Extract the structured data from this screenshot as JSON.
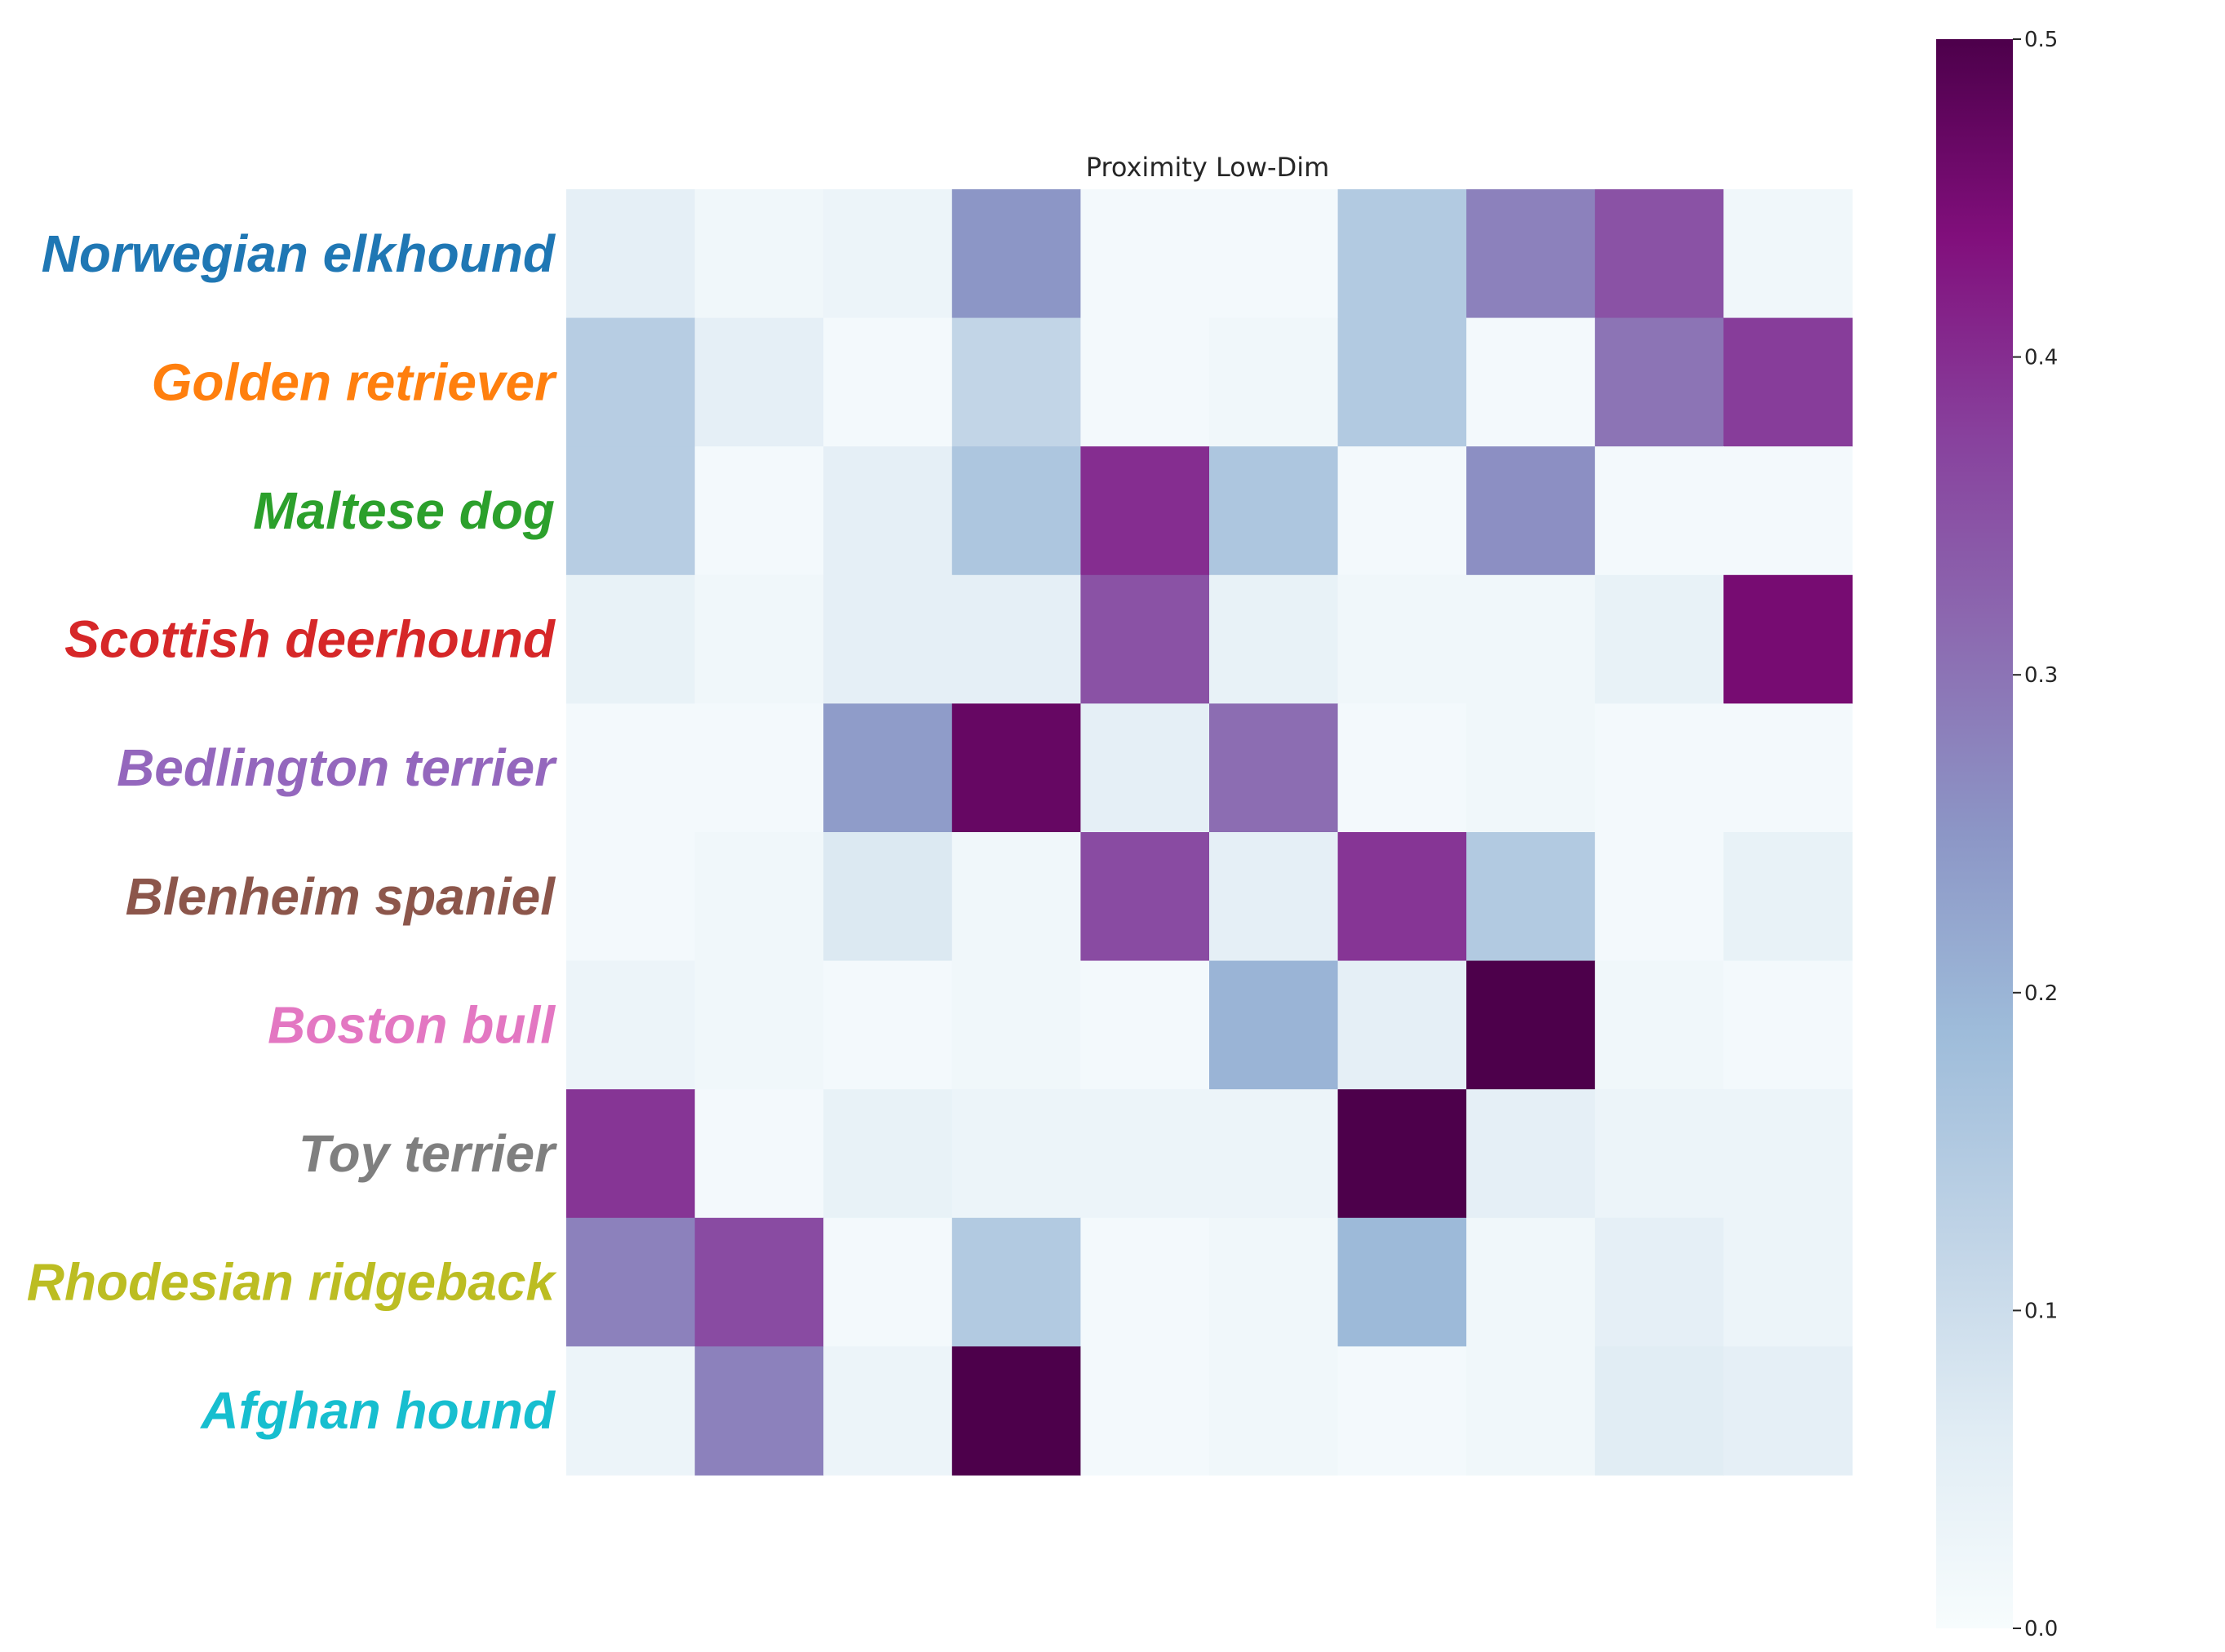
{
  "chart_data": {
    "type": "heatmap",
    "title": "Proximity Low-Dim",
    "row_labels": [
      "Norwegian elkhound",
      "Golden retriever",
      "Maltese dog",
      "Scottish deerhound",
      "Bedlington terrier",
      "Blenheim spaniel",
      "Boston bull",
      "Toy terrier",
      "Rhodesian ridgeback",
      "Afghan hound"
    ],
    "row_label_colors": [
      "#1f77b4",
      "#ff7f0e",
      "#2ca02c",
      "#d62728",
      "#9467bd",
      "#8c564b",
      "#e377c2",
      "#7f7f7f",
      "#bcbd22",
      "#17becf"
    ],
    "col_labels": [],
    "values": [
      [
        0.05,
        0.02,
        0.03,
        0.25,
        0.01,
        0.01,
        0.15,
        0.28,
        0.35,
        0.02
      ],
      [
        0.14,
        0.05,
        0.01,
        0.12,
        0.01,
        0.02,
        0.15,
        0.01,
        0.3,
        0.38
      ],
      [
        0.14,
        0.01,
        0.05,
        0.16,
        0.4,
        0.16,
        0.01,
        0.26,
        0.01,
        0.01
      ],
      [
        0.04,
        0.02,
        0.05,
        0.05,
        0.35,
        0.04,
        0.02,
        0.02,
        0.04,
        0.45
      ],
      [
        0.01,
        0.01,
        0.24,
        0.47,
        0.05,
        0.31,
        0.01,
        0.02,
        0.01,
        0.01
      ],
      [
        0.01,
        0.02,
        0.07,
        0.02,
        0.36,
        0.05,
        0.39,
        0.15,
        0.01,
        0.04
      ],
      [
        0.03,
        0.02,
        0.01,
        0.02,
        0.01,
        0.2,
        0.05,
        0.5,
        0.02,
        0.01
      ],
      [
        0.39,
        0.01,
        0.04,
        0.03,
        0.03,
        0.03,
        0.5,
        0.05,
        0.03,
        0.03
      ],
      [
        0.28,
        0.36,
        0.01,
        0.15,
        0.01,
        0.02,
        0.19,
        0.02,
        0.05,
        0.03
      ],
      [
        0.03,
        0.28,
        0.03,
        0.5,
        0.01,
        0.02,
        0.01,
        0.02,
        0.06,
        0.05
      ]
    ],
    "colormap": "BuPu",
    "colormap_stops": [
      "#f7fcfd",
      "#e0ecf4",
      "#bfd3e6",
      "#9ebcda",
      "#8c96c6",
      "#8c6bb1",
      "#88419d",
      "#810f7c",
      "#4d004b"
    ],
    "vmin": 0.0,
    "vmax": 0.5,
    "colorbar_ticks": [
      "0.0",
      "0.1",
      "0.2",
      "0.3",
      "0.4",
      "0.5"
    ],
    "grid": false,
    "legend": "colorbar-right"
  }
}
